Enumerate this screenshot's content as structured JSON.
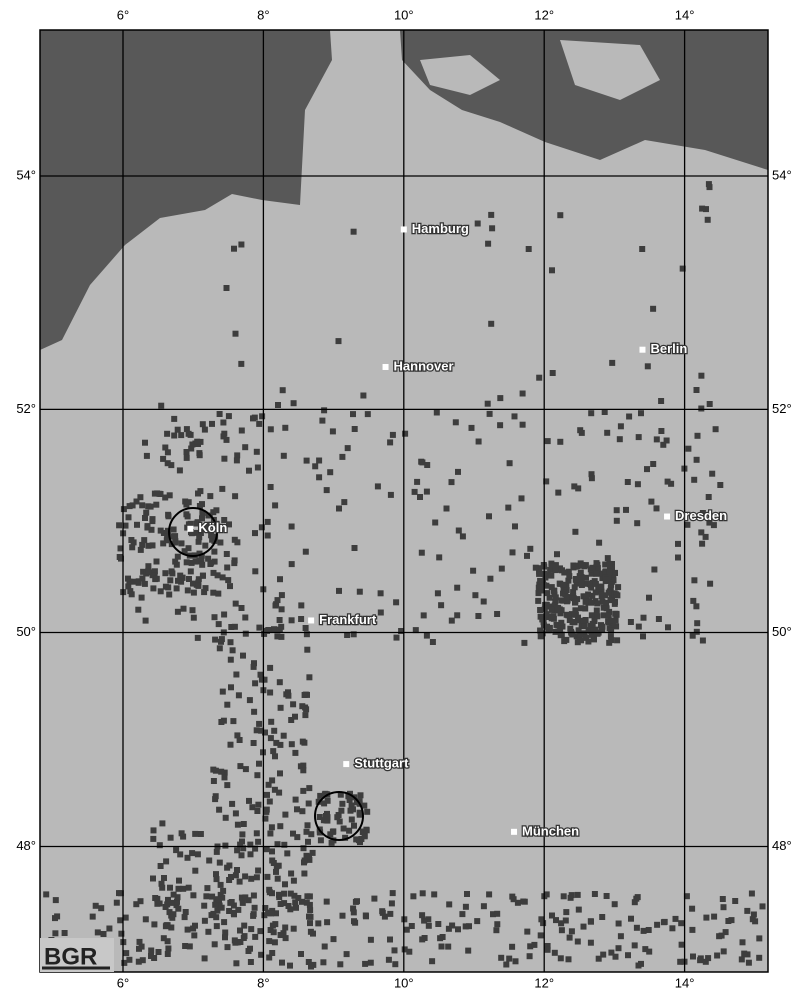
{
  "map": {
    "lon_ticks": [
      {
        "value": 6,
        "label": "6°"
      },
      {
        "value": 8,
        "label": "8°"
      },
      {
        "value": 10,
        "label": "10°"
      },
      {
        "value": 12,
        "label": "12°"
      },
      {
        "value": 14,
        "label": "14°"
      }
    ],
    "lat_ticks": [
      {
        "value": 54,
        "label": "54°"
      },
      {
        "value": 52,
        "label": "52°"
      },
      {
        "value": 50,
        "label": "50°"
      },
      {
        "value": 48,
        "label": "48°"
      }
    ],
    "cities": [
      {
        "label": "Hamburg",
        "lon": 10.0,
        "lat": 53.55
      },
      {
        "label": "Hannover",
        "lon": 9.74,
        "lat": 52.37
      },
      {
        "label": "Berlin",
        "lon": 13.4,
        "lat": 52.52
      },
      {
        "label": "Köln",
        "lon": 6.96,
        "lat": 50.94
      },
      {
        "label": "Dresden",
        "lon": 13.75,
        "lat": 51.05
      },
      {
        "label": "Frankfurt",
        "lon": 8.68,
        "lat": 50.11
      },
      {
        "label": "Stuttgart",
        "lon": 9.18,
        "lat": 48.78
      },
      {
        "label": "München",
        "lon": 11.57,
        "lat": 48.14
      }
    ],
    "logo": "BGR"
  }
}
